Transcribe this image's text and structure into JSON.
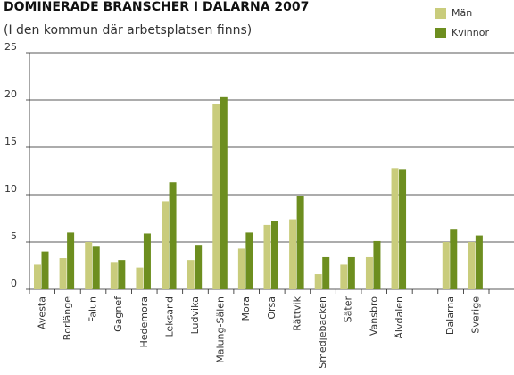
{
  "chart_data": {
    "type": "bar",
    "title": "DOMINERADE BRANSCHER I DALARNA 2007",
    "subtitle": "(I den kommun där arbetsplatsen finns)",
    "categories": [
      "Avesta",
      "Borlänge",
      "Falun",
      "Gagnef",
      "Hedemora",
      "Leksand",
      "Ludvika",
      "Malung-Sälen",
      "Mora",
      "Orsa",
      "Rättvik",
      "Smedjebacken",
      "Säter",
      "Vansbro",
      "Älvdalen",
      null,
      "Dalarna",
      "Sverige"
    ],
    "series": [
      {
        "name": "Män",
        "color": "#c9cc7c",
        "values": [
          2.6,
          3.3,
          5.0,
          2.8,
          2.3,
          9.3,
          3.1,
          19.6,
          4.3,
          6.8,
          7.4,
          1.6,
          2.6,
          3.4,
          12.8,
          null,
          5.0,
          5.0
        ]
      },
      {
        "name": "Kvinnor",
        "color": "#6d8e1f",
        "values": [
          4.0,
          6.0,
          4.5,
          3.1,
          5.9,
          11.3,
          4.7,
          20.3,
          6.0,
          7.2,
          9.9,
          3.4,
          3.4,
          5.1,
          12.7,
          null,
          6.3,
          5.7
        ]
      }
    ],
    "ylim": [
      0,
      25
    ],
    "yticks": [
      0,
      5,
      10,
      15,
      20,
      25
    ],
    "grid": true,
    "legend": "top-right"
  }
}
